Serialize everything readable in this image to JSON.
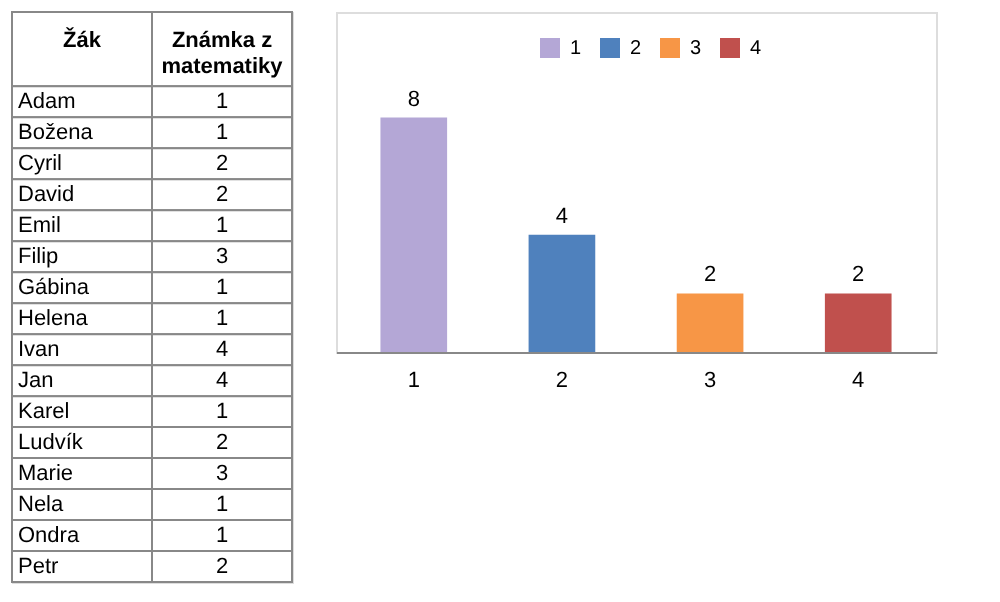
{
  "chart_data": [
    {
      "type": "other",
      "xlabel": "Žák",
      "ylabel": "Známka z matematiky",
      "categories": [
        "Adam",
        "Božena",
        "Cyril",
        "David",
        "Emil",
        "Filip",
        "Gábina",
        "Helena",
        "Ivan",
        "Jan",
        "Karel",
        "Ludvík",
        "Marie",
        "Nela",
        "Ondra",
        "Petr"
      ],
      "values": [
        1,
        1,
        2,
        2,
        1,
        3,
        1,
        1,
        4,
        4,
        1,
        2,
        3,
        1,
        1,
        2
      ],
      "data_labels": true
    },
    {
      "type": "bar",
      "categories": [
        "1",
        "2",
        "3",
        "4"
      ],
      "series": [
        {
          "name": "1",
          "color": "#b4a7d6",
          "values": [
            8,
            null,
            null,
            null
          ]
        },
        {
          "name": "2",
          "color": "#4f81bd",
          "values": [
            null,
            4,
            null,
            null
          ]
        },
        {
          "name": "3",
          "color": "#f79646",
          "values": [
            null,
            null,
            2,
            null
          ]
        },
        {
          "name": "4",
          "color": "#c0504d",
          "values": [
            null,
            null,
            null,
            2
          ]
        }
      ],
      "data_labels": true,
      "legend": "top"
    }
  ]
}
